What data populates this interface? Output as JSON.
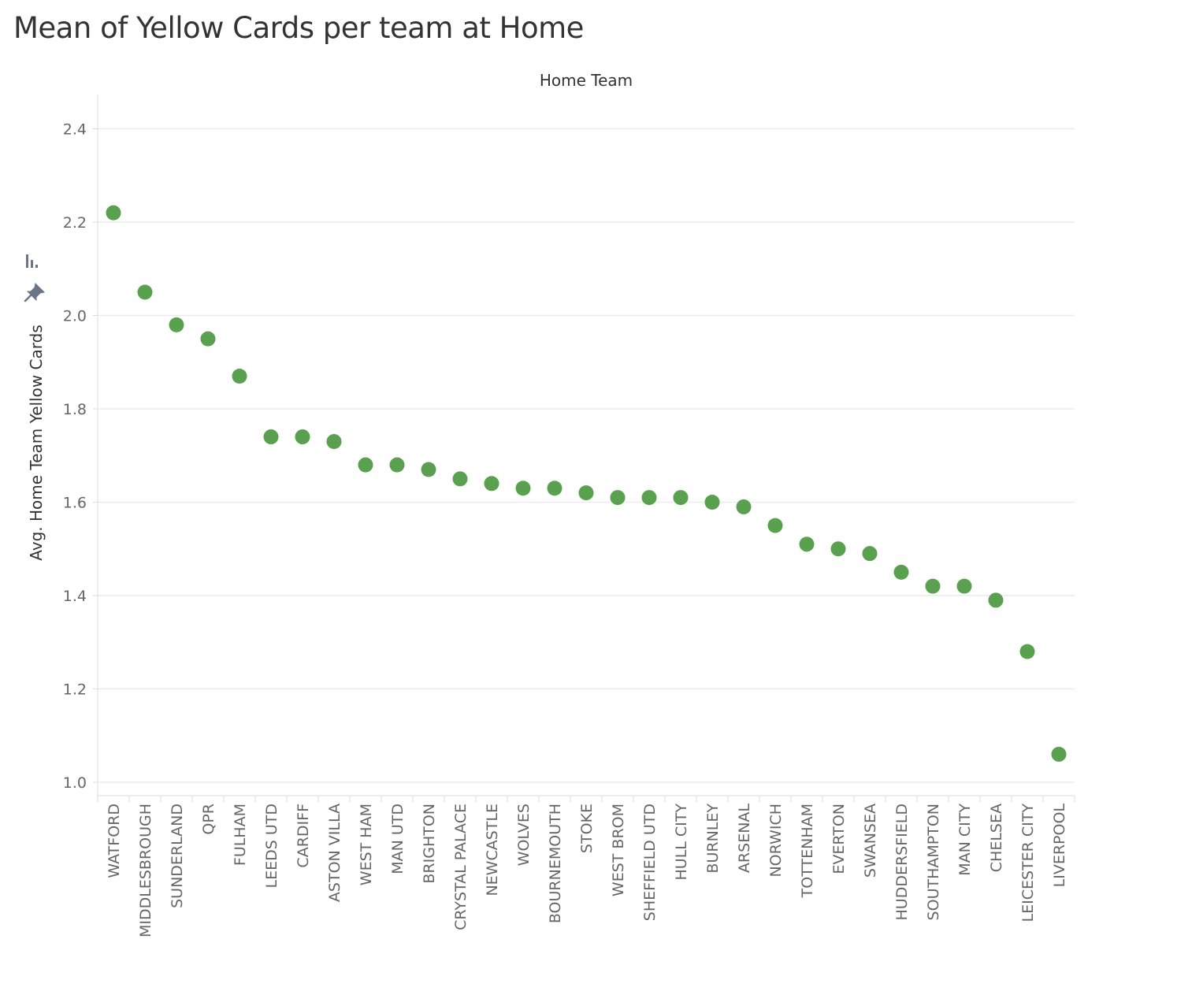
{
  "title": "Mean of Yellow Cards per team at Home",
  "colors": {
    "dot": "#59A14F",
    "grid": "#ececec",
    "axis": "#dddddd",
    "icon": "#6b7587"
  },
  "icons": [
    "sort-icon",
    "pin-icon"
  ],
  "chart_data": {
    "type": "scatter",
    "title": "Mean of Yellow Cards per team at Home",
    "xlabel": "Home Team",
    "ylabel": "Avg. Home Team Yellow Cards",
    "ylim": [
      0.97,
      2.5
    ],
    "yticks": [
      1.0,
      1.2,
      1.4,
      1.6,
      1.8,
      2.0,
      2.2,
      2.4
    ],
    "ytick_labels": [
      "1.0",
      "1.2",
      "1.4",
      "1.6",
      "1.8",
      "2.0",
      "2.2",
      "2.4"
    ],
    "grid": true,
    "categories": [
      "WATFORD",
      "MIDDLESBROUGH",
      "SUNDERLAND",
      "QPR",
      "FULHAM",
      "LEEDS UTD",
      "CARDIFF",
      "ASTON VILLA",
      "WEST HAM",
      "MAN UTD",
      "BRIGHTON",
      "CRYSTAL PALACE",
      "NEWCASTLE",
      "WOLVES",
      "BOURNEMOUTH",
      "STOKE",
      "WEST BROM",
      "SHEFFIELD UTD",
      "HULL CITY",
      "BURNLEY",
      "ARSENAL",
      "NORWICH",
      "TOTTENHAM",
      "EVERTON",
      "SWANSEA",
      "HUDDERSFIELD",
      "SOUTHAMPTON",
      "MAN CITY",
      "CHELSEA",
      "LEICESTER CITY",
      "LIVERPOOL"
    ],
    "values": [
      2.22,
      2.05,
      1.98,
      1.95,
      1.87,
      1.74,
      1.74,
      1.73,
      1.68,
      1.68,
      1.67,
      1.65,
      1.64,
      1.63,
      1.63,
      1.62,
      1.61,
      1.61,
      1.61,
      1.6,
      1.59,
      1.55,
      1.51,
      1.5,
      1.49,
      1.45,
      1.42,
      1.42,
      1.39,
      1.28,
      1.06
    ]
  }
}
